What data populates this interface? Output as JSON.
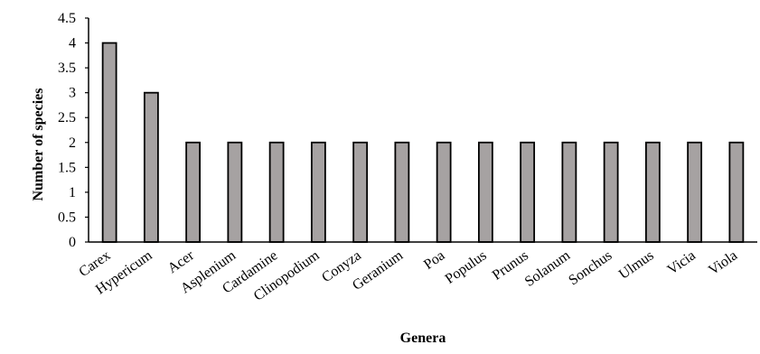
{
  "chart_data": {
    "type": "bar",
    "title": "",
    "xlabel": "Genera",
    "ylabel": "Number of species",
    "ylim": [
      0,
      4.5
    ],
    "yticks": [
      "0",
      "0.5",
      "1",
      "1.5",
      "2",
      "2.5",
      "3",
      "3.5",
      "4",
      "4.5"
    ],
    "grid": false,
    "legend": "none",
    "categories": [
      "Carex",
      "Hypericum",
      "Acer",
      "Asplenium",
      "Cardamine",
      "Clinopodium",
      "Conyza",
      "Geranium",
      "Poa",
      "Populus",
      "Prunus",
      "Solanum",
      "Sonchus",
      "Ulmus",
      "Vicia",
      "Viola"
    ],
    "values": [
      4,
      3,
      2,
      2,
      2,
      2,
      2,
      2,
      2,
      2,
      2,
      2,
      2,
      2,
      2,
      2
    ],
    "colors": {
      "bar_fill": "#a6a2a2",
      "bar_stroke": "#000000",
      "axis": "#000000",
      "text": "#000000",
      "background": "#ffffff"
    }
  }
}
